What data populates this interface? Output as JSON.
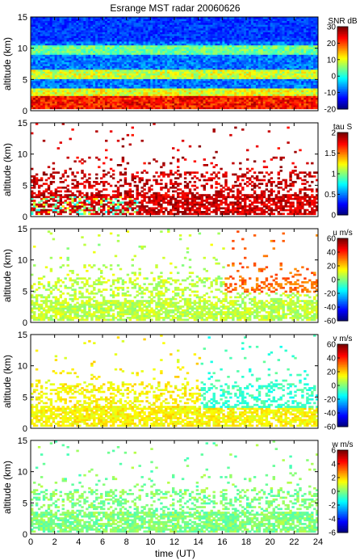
{
  "title": "Esrange MST radar 20060626",
  "xlabel": "time (UT)",
  "chart_data": [
    {
      "type": "heatmap",
      "name": "SNR",
      "ylabel": "altitude (km)",
      "ylim": [
        0,
        15
      ],
      "yticks": [
        "0",
        "5",
        "10",
        "15"
      ],
      "colorbar_label": "SNR dB",
      "clim": [
        -20,
        30
      ],
      "colorbar_ticks": [
        "30",
        "20",
        "10",
        "0",
        "-10",
        "-20"
      ],
      "features": "dense background filled with low-SNR blue; strong return below 2 km (red/orange), enhanced layers near 5-6 km and 9-10 km",
      "layers_km": [
        1.5,
        5.5,
        9.5
      ],
      "xlim": [
        0,
        24
      ]
    },
    {
      "type": "heatmap",
      "name": "tau",
      "ylabel": "altitude (km)",
      "ylim": [
        0,
        15
      ],
      "yticks": [
        "0",
        "5",
        "10",
        "15"
      ],
      "colorbar_label": "tau S",
      "clim": [
        0,
        2
      ],
      "colorbar_ticks": [
        "2",
        "1.5",
        "1",
        "0.5",
        "0"
      ],
      "features": "scattered echoes mostly dark red (tau ~2 s) between 1 and 9 km, sparse cyan/yellow below 3 km before 9 UT",
      "xlim": [
        0,
        24
      ]
    },
    {
      "type": "heatmap",
      "name": "u",
      "ylabel": "altitude (km)",
      "ylim": [
        0,
        15
      ],
      "yticks": [
        "0",
        "5",
        "10",
        "15"
      ],
      "colorbar_label": "u m/s",
      "clim": [
        -60,
        60
      ],
      "colorbar_ticks": [
        "60",
        "40",
        "20",
        "0",
        "-20",
        "-40",
        "-60"
      ],
      "features": "light green/cyan (~0 to 10 m/s) below 4 km, yellow-orange (~20-30 m/s) layer 5-7 km after 16 UT",
      "xlim": [
        0,
        24
      ]
    },
    {
      "type": "heatmap",
      "name": "v",
      "ylabel": "altitude (km)",
      "ylim": [
        0,
        15
      ],
      "yticks": [
        "0",
        "5",
        "10",
        "15"
      ],
      "colorbar_label": "v m/s",
      "clim": [
        -60,
        60
      ],
      "colorbar_ticks": [
        "60",
        "40",
        "20",
        "0",
        "-20",
        "-40",
        "-60"
      ],
      "features": "yellow-green (~5-15 m/s) early, turning cyan (~-10 m/s) after 14 UT between 3 and 8 km",
      "xlim": [
        0,
        24
      ]
    },
    {
      "type": "heatmap",
      "name": "w",
      "ylabel": "altitude (km)",
      "ylim": [
        0,
        15
      ],
      "yticks": [
        "0",
        "5",
        "10",
        "15"
      ],
      "colorbar_label": "w m/s",
      "clim": [
        -6,
        6
      ],
      "colorbar_ticks": [
        "6",
        "4",
        "2",
        "0",
        "-2",
        "-4",
        "-6"
      ],
      "features": "mostly light green (~0 m/s) below 5 km, scattered isolated points up to 14 km",
      "xlim": [
        0,
        24
      ]
    }
  ],
  "xticks": [
    "0",
    "2",
    "4",
    "6",
    "8",
    "10",
    "12",
    "14",
    "16",
    "18",
    "20",
    "22",
    "24"
  ],
  "colors": {
    "jet": [
      "#00008f",
      "#0000ff",
      "#0080ff",
      "#00ffff",
      "#80ff80",
      "#ffff00",
      "#ff8000",
      "#ff0000",
      "#800000"
    ]
  }
}
